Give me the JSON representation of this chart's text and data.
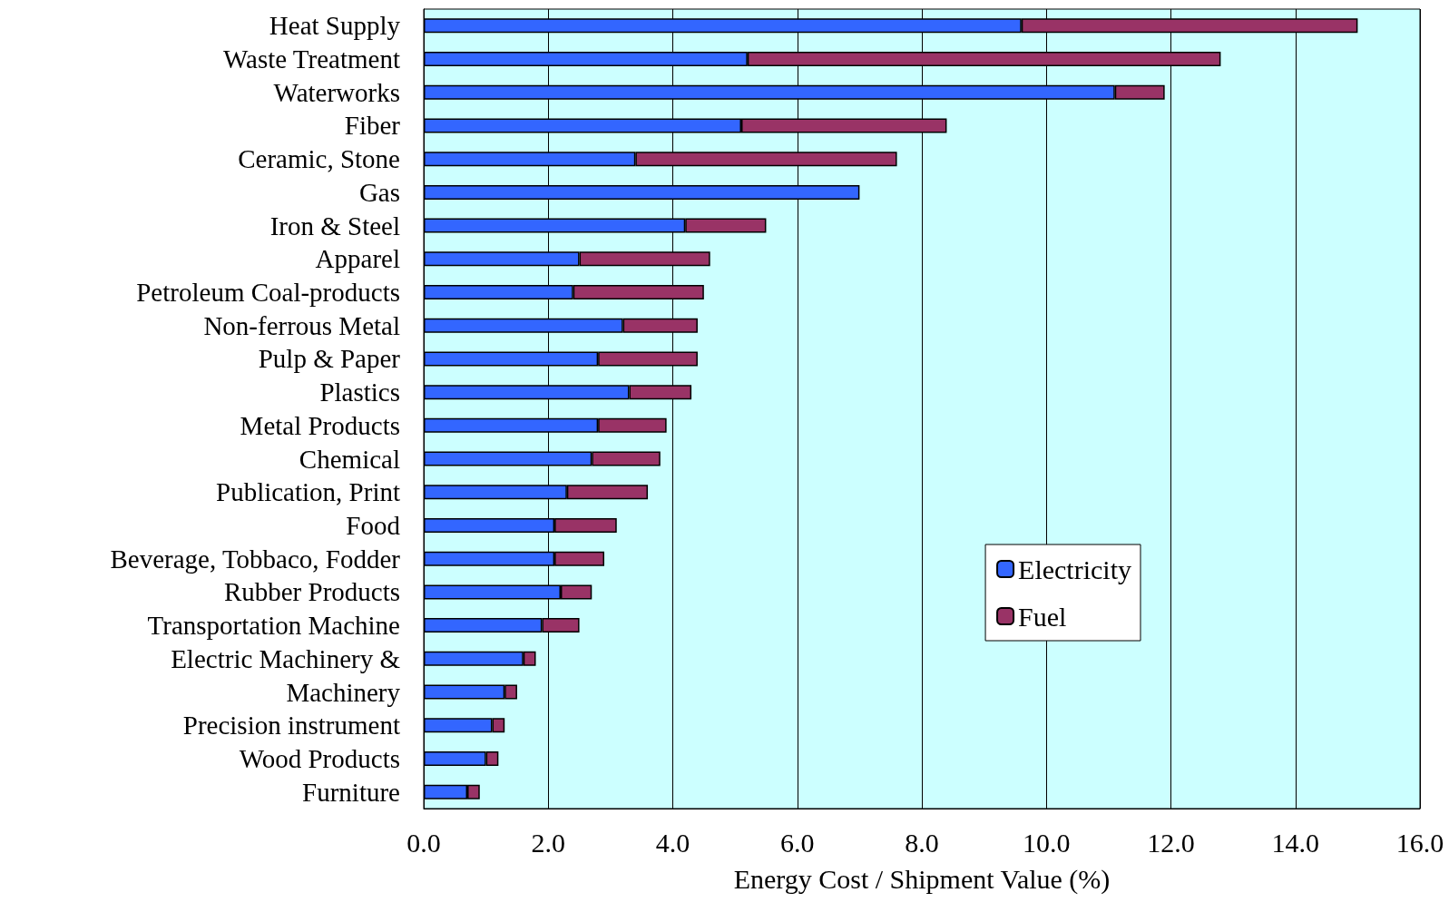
{
  "chart_data": {
    "type": "bar",
    "orientation": "horizontal",
    "stacked": true,
    "xlabel": "Energy Cost / Shipment Value (%)",
    "categories": [
      "Heat Supply",
      "Waste Treatment",
      "Waterworks",
      "Fiber",
      "Ceramic, Stone",
      "Gas",
      "Iron & Steel",
      "Apparel",
      "Petroleum Coal-products",
      "Non-ferrous Metal",
      "Pulp & Paper",
      "Plastics",
      "Metal Products",
      "Chemical",
      "Publication, Print",
      "Food",
      "Beverage, Tobbaco, Fodder",
      "Rubber Products",
      "Transportation Machine",
      "Electric Machinery &",
      "Machinery",
      "Precision instrument",
      "Wood Products",
      "Furniture"
    ],
    "series": [
      {
        "name": "Electricity",
        "color": "#3366ff",
        "values": [
          9.6,
          5.2,
          11.1,
          5.1,
          3.4,
          7.0,
          4.2,
          2.5,
          2.4,
          3.2,
          2.8,
          3.3,
          2.8,
          2.7,
          2.3,
          2.1,
          2.1,
          2.2,
          1.9,
          1.6,
          1.3,
          1.1,
          1.0,
          0.7
        ]
      },
      {
        "name": "Fuel",
        "color": "#993366",
        "values": [
          5.4,
          7.6,
          0.8,
          3.3,
          4.2,
          null,
          1.3,
          2.1,
          2.1,
          1.2,
          1.6,
          1.0,
          1.1,
          1.1,
          1.3,
          1.0,
          0.8,
          0.5,
          0.6,
          0.2,
          0.2,
          0.2,
          0.2,
          0.2
        ]
      }
    ],
    "xlim": [
      0,
      16
    ],
    "xticks": [
      {
        "value": 0,
        "label": "0.0"
      },
      {
        "value": 2,
        "label": "2.0"
      },
      {
        "value": 4,
        "label": "4.0"
      },
      {
        "value": 6,
        "label": "6.0"
      },
      {
        "value": 8,
        "label": "8.0"
      },
      {
        "value": 10,
        "label": "10.0"
      },
      {
        "value": 12,
        "label": "12.0"
      },
      {
        "value": 14,
        "label": "14.0"
      },
      {
        "value": 16,
        "label": "16.0"
      }
    ],
    "grid": "x",
    "legend": "right"
  }
}
